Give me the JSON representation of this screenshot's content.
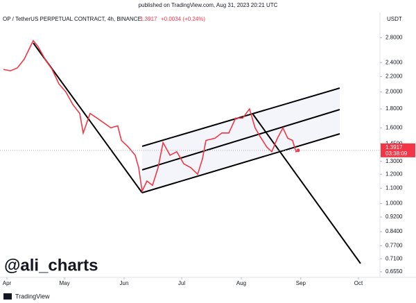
{
  "header": {
    "published": "published on TradingView.com, Aug 31, 2023 20:21 UTC",
    "symbol": "OP / TetherUS PERPETUAL CONTRACT, 4h, BINANCE",
    "price_change": "+0.0034 (+0.24%)",
    "currency": "USDT",
    "countdown": "03:38:09",
    "watermark": "@ali_charts",
    "brand": "TradingView"
  },
  "chart_data": {
    "type": "line",
    "log_scale": true,
    "grid": false,
    "x": [
      89.2,
      92.8,
      96.4,
      100,
      104.7,
      107.2,
      110.9,
      114.5,
      118.1,
      121.7,
      125.3,
      128.9,
      130.7,
      134.3,
      137.9,
      141.5,
      145.1,
      148.7,
      150.6,
      154.2,
      157.8,
      159.6,
      161.4,
      163.9,
      166.8,
      169.7,
      172.3,
      175.9,
      179.4,
      183.1,
      186.7,
      190.3,
      192.8,
      194.6,
      199.3,
      202.9,
      206.5,
      210.1,
      213.7,
      217.3,
      220.2,
      222.7,
      226.3,
      228.9,
      231.8,
      234.7,
      237.2,
      239.7,
      241.5,
      242.6
    ],
    "series": [
      {
        "name": "OP / TetherUS PERPETUAL CONTRACT",
        "color": "#f23645",
        "values": [
          2.3,
          2.28,
          2.32,
          2.45,
          2.75,
          2.65,
          2.45,
          2.3,
          2.1,
          2.0,
          1.85,
          1.75,
          1.55,
          1.75,
          1.7,
          1.65,
          1.6,
          1.62,
          1.48,
          1.42,
          1.35,
          1.25,
          1.08,
          1.15,
          1.12,
          1.25,
          1.46,
          1.35,
          1.38,
          1.28,
          1.25,
          1.2,
          1.32,
          1.48,
          1.5,
          1.55,
          1.55,
          1.7,
          1.7,
          1.8,
          1.6,
          1.52,
          1.42,
          1.38,
          1.5,
          1.6,
          1.5,
          1.48,
          1.38,
          1.3917
        ]
      }
    ],
    "last_price": 1.3917,
    "xlim": [
      87.4,
      285.2
    ],
    "xticks": [
      {
        "value": 91,
        "label": "Apr"
      },
      {
        "value": 121,
        "label": "May"
      },
      {
        "value": 152,
        "label": "Jun"
      },
      {
        "value": 182,
        "label": "Jul"
      },
      {
        "value": 213,
        "label": "Aug"
      },
      {
        "value": 244,
        "label": "Sep"
      },
      {
        "value": 274,
        "label": "Oct"
      }
    ],
    "ylim": [
      0.6326,
      3.275
    ],
    "yticks": [
      {
        "value": 2.8,
        "label": "2.8000"
      },
      {
        "value": 2.4,
        "label": "2.4000"
      },
      {
        "value": 2.2,
        "label": "2.2000"
      },
      {
        "value": 2.0,
        "label": "2.0000"
      },
      {
        "value": 1.8,
        "label": "1.8000"
      },
      {
        "value": 1.6,
        "label": "1.6000"
      },
      {
        "value": 1.45,
        "label": "1.4500"
      },
      {
        "value": 1.3,
        "label": "1.3000"
      },
      {
        "value": 1.2,
        "label": "1.2000"
      },
      {
        "value": 1.1,
        "label": "1.1000"
      },
      {
        "value": 1.0,
        "label": "1.0000"
      },
      {
        "value": 0.92,
        "label": "0.9200"
      },
      {
        "value": 0.84,
        "label": "0.8400"
      },
      {
        "value": 0.77,
        "label": "0.7700"
      },
      {
        "value": 0.71,
        "label": "0.7100"
      },
      {
        "value": 0.655,
        "label": "0.6550"
      }
    ]
  }
}
